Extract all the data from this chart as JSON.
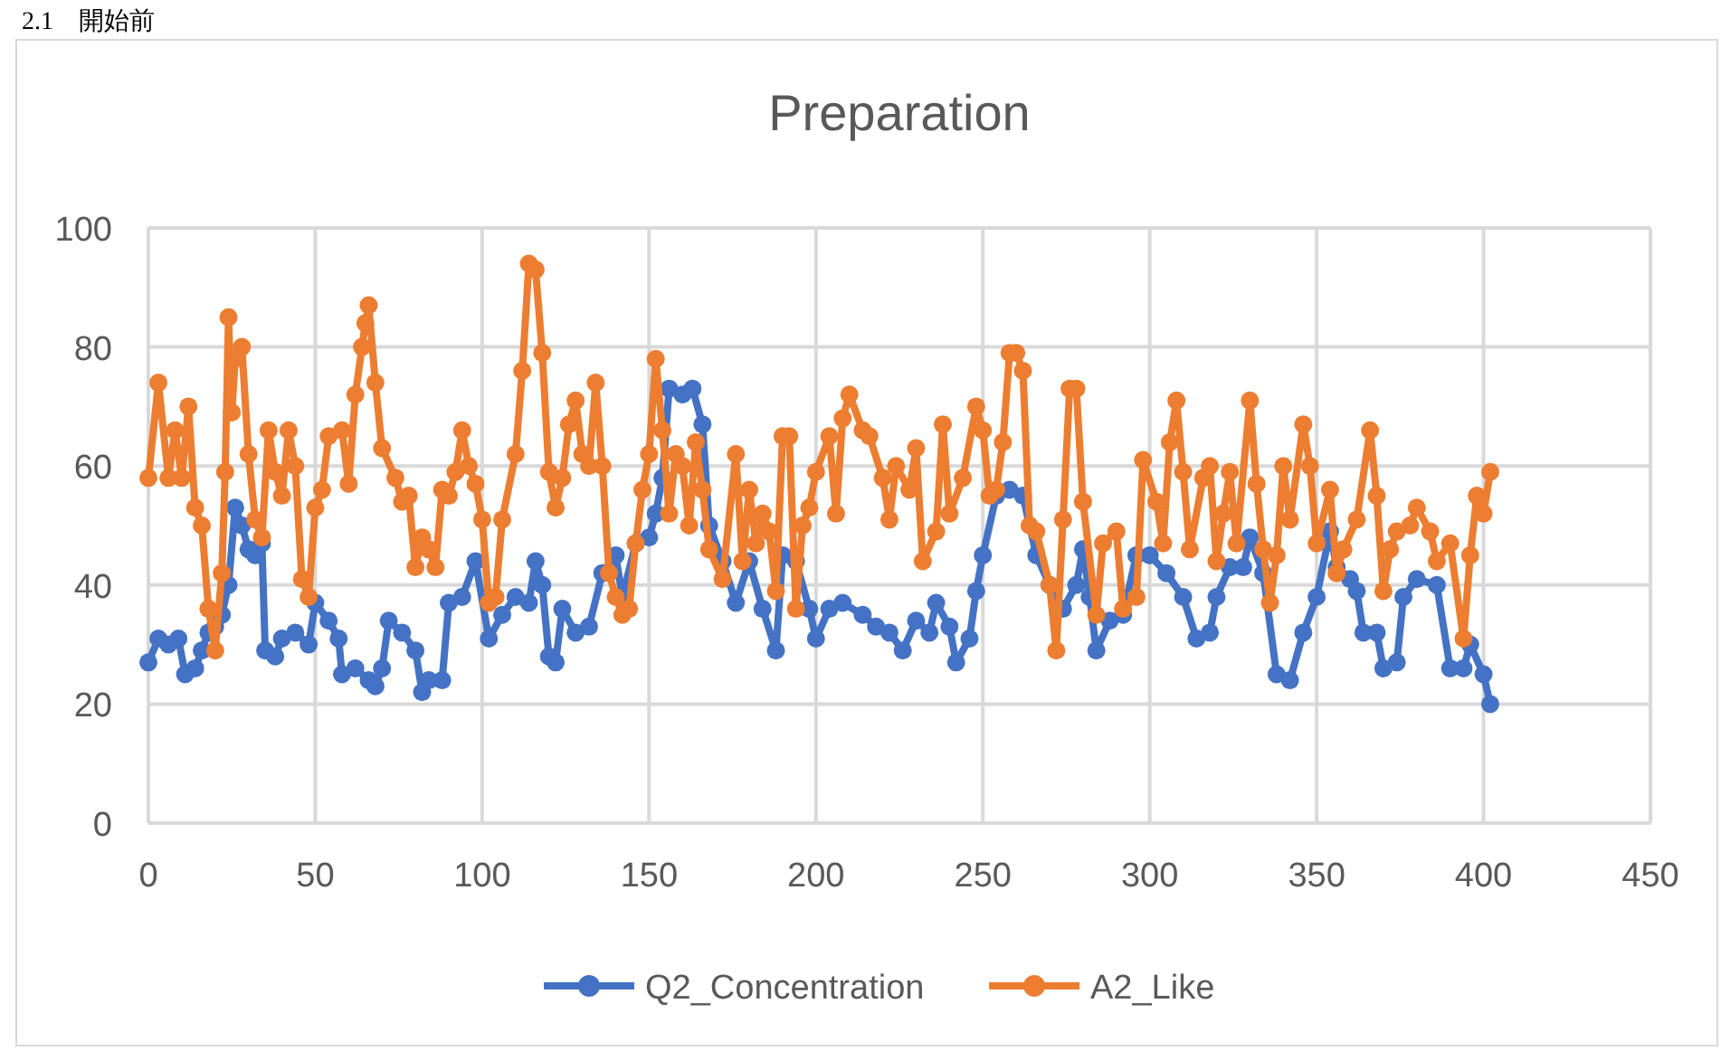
{
  "chart_data": {
    "type": "line",
    "title": "Preparation",
    "annotations": [
      "2.1　開始前"
    ],
    "xlim": [
      0,
      450
    ],
    "xticks": [
      0,
      50,
      100,
      150,
      200,
      250,
      300,
      350,
      400,
      450
    ],
    "ylim": [
      0,
      100
    ],
    "yticks": [
      0,
      20,
      40,
      60,
      80,
      100
    ],
    "grid": true,
    "legend": "bottom",
    "marker": "circle",
    "line_style": "solid",
    "series": [
      {
        "name": "Q2_Concentration",
        "color": "#4472c4",
        "x": [
          0,
          3,
          6,
          9,
          11,
          14,
          16,
          18,
          20,
          22,
          24,
          26,
          28,
          30,
          32,
          34,
          35,
          38,
          40,
          44,
          48,
          50,
          54,
          57,
          58,
          62,
          66,
          68,
          70,
          72,
          76,
          80,
          82,
          84,
          88,
          90,
          94,
          98,
          102,
          106,
          110,
          114,
          116,
          118,
          120,
          122,
          124,
          128,
          132,
          136,
          140,
          142,
          146,
          150,
          152,
          154,
          156,
          160,
          163,
          166,
          168,
          172,
          176,
          180,
          184,
          188,
          190,
          194,
          198,
          200,
          204,
          208,
          214,
          218,
          222,
          226,
          230,
          234,
          236,
          240,
          242,
          246,
          248,
          250,
          254,
          258,
          262,
          266,
          270,
          274,
          278,
          280,
          282,
          284,
          288,
          292,
          296,
          300,
          305,
          310,
          314,
          318,
          320,
          324,
          328,
          330,
          334,
          338,
          342,
          346,
          350,
          354,
          356,
          360,
          362,
          364,
          368,
          370,
          374,
          376,
          380,
          386,
          390,
          394,
          396,
          400,
          402
        ],
        "values": [
          27,
          31,
          30,
          31,
          25,
          26,
          29,
          32,
          33,
          35,
          40,
          53,
          50,
          46,
          45,
          47,
          29,
          28,
          31,
          32,
          30,
          37,
          34,
          31,
          25,
          26,
          24,
          23,
          26,
          34,
          32,
          29,
          22,
          24,
          24,
          37,
          38,
          44,
          31,
          35,
          38,
          37,
          44,
          40,
          28,
          27,
          36,
          32,
          33,
          42,
          45,
          38,
          47,
          48,
          52,
          58,
          73,
          72,
          73,
          67,
          50,
          44,
          37,
          44,
          36,
          29,
          45,
          44,
          36,
          31,
          36,
          37,
          35,
          33,
          32,
          29,
          34,
          32,
          37,
          33,
          27,
          31,
          39,
          45,
          55,
          56,
          55,
          45,
          40,
          36,
          40,
          46,
          38,
          29,
          34,
          35,
          45,
          45,
          42,
          38,
          31,
          32,
          38,
          43,
          43,
          48,
          42,
          25,
          24,
          32,
          38,
          49,
          43,
          41,
          39,
          32,
          32,
          26,
          27,
          38,
          41,
          40,
          26,
          26,
          30,
          25,
          20
        ]
      },
      {
        "name": "A2_Like",
        "color": "#ed7d31",
        "x": [
          0,
          3,
          6,
          8,
          10,
          12,
          14,
          16,
          18,
          20,
          22,
          23,
          24,
          25,
          26,
          28,
          30,
          32,
          34,
          36,
          38,
          40,
          42,
          44,
          46,
          48,
          50,
          52,
          54,
          58,
          60,
          62,
          64,
          65,
          66,
          68,
          70,
          74,
          76,
          78,
          80,
          82,
          84,
          86,
          88,
          90,
          92,
          94,
          96,
          98,
          100,
          102,
          104,
          106,
          110,
          112,
          114,
          116,
          118,
          120,
          122,
          124,
          126,
          128,
          130,
          132,
          134,
          136,
          138,
          140,
          142,
          144,
          146,
          148,
          150,
          152,
          154,
          156,
          158,
          160,
          162,
          164,
          166,
          168,
          172,
          176,
          178,
          180,
          182,
          184,
          186,
          188,
          190,
          192,
          194,
          196,
          198,
          200,
          204,
          206,
          208,
          210,
          214,
          216,
          220,
          222,
          224,
          228,
          230,
          232,
          236,
          238,
          240,
          244,
          248,
          250,
          252,
          254,
          256,
          258,
          260,
          262,
          264,
          266,
          270,
          272,
          274,
          276,
          278,
          280,
          284,
          286,
          290,
          292,
          296,
          298,
          302,
          304,
          306,
          308,
          310,
          312,
          316,
          318,
          320,
          322,
          324,
          326,
          330,
          332,
          334,
          336,
          338,
          340,
          342,
          346,
          348,
          350,
          354,
          356,
          358,
          362,
          366,
          368,
          370,
          372,
          374,
          378,
          380,
          384,
          386,
          390,
          394,
          396,
          398,
          400,
          402
        ],
        "values": [
          58,
          74,
          58,
          66,
          58,
          70,
          53,
          50,
          36,
          29,
          42,
          59,
          85,
          69,
          78,
          80,
          62,
          51,
          48,
          66,
          59,
          55,
          66,
          60,
          41,
          38,
          53,
          56,
          65,
          66,
          57,
          72,
          80,
          84,
          87,
          74,
          63,
          58,
          54,
          55,
          43,
          48,
          46,
          43,
          56,
          55,
          59,
          66,
          60,
          57,
          51,
          37,
          38,
          51,
          62,
          76,
          94,
          93,
          79,
          59,
          53,
          58,
          67,
          71,
          62,
          60,
          74,
          60,
          42,
          38,
          35,
          36,
          47,
          56,
          62,
          78,
          66,
          52,
          62,
          60,
          50,
          64,
          56,
          46,
          41,
          62,
          44,
          56,
          47,
          52,
          49,
          39,
          65,
          65,
          36,
          50,
          53,
          59,
          65,
          52,
          68,
          72,
          66,
          65,
          58,
          51,
          60,
          56,
          63,
          44,
          49,
          67,
          52,
          58,
          70,
          66,
          55,
          56,
          64,
          79,
          79,
          76,
          50,
          49,
          40,
          29,
          51,
          73,
          73,
          54,
          35,
          47,
          49,
          36,
          38,
          61,
          54,
          47,
          64,
          71,
          59,
          46,
          58,
          60,
          44,
          52,
          59,
          47,
          71,
          57,
          46,
          37,
          45,
          60,
          51,
          67,
          60,
          47,
          56,
          42,
          46,
          51,
          66,
          55,
          39,
          46,
          49,
          50,
          53,
          49,
          44,
          47,
          31,
          45,
          55,
          52,
          59
        ]
      }
    ]
  }
}
